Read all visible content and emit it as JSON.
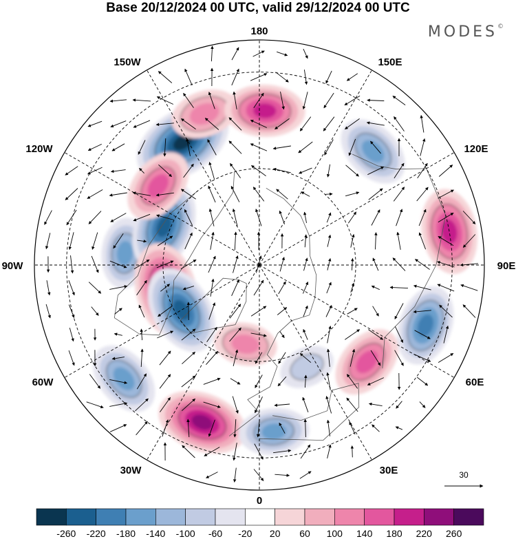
{
  "header": {
    "title": "Base 20/12/2024 00 UTC, valid 29/12/2024 00 UTC",
    "logo_text": "MODES"
  },
  "map": {
    "projection": "north-polar-stereographic",
    "longitude_labels": [
      {
        "key": "0",
        "text": "0"
      },
      {
        "key": "30E",
        "text": "30E"
      },
      {
        "key": "60E",
        "text": "60E"
      },
      {
        "key": "90E",
        "text": "90E"
      },
      {
        "key": "120E",
        "text": "120E"
      },
      {
        "key": "150E",
        "text": "150E"
      },
      {
        "key": "180",
        "text": "180"
      },
      {
        "key": "150W",
        "text": "150W"
      },
      {
        "key": "120W",
        "text": "120W"
      },
      {
        "key": "90W",
        "text": "90W"
      },
      {
        "key": "60W",
        "text": "60W"
      },
      {
        "key": "30W",
        "text": "30W"
      }
    ],
    "anomaly_centers": [
      {
        "lon": -148,
        "lat": 45,
        "sign": "negative",
        "magnitude": 240
      },
      {
        "lon": -95,
        "lat": 48,
        "sign": "negative",
        "magnitude": 120
      },
      {
        "lon": -112,
        "lat": 58,
        "sign": "negative",
        "magnitude": 200
      },
      {
        "lon": -128,
        "lat": 50,
        "sign": "positive",
        "magnitude": 140
      },
      {
        "lon": -160,
        "lat": 40,
        "sign": "positive",
        "magnitude": 110
      },
      {
        "lon": 100,
        "lat": 30,
        "sign": "positive",
        "magnitude": 180
      },
      {
        "lon": 178,
        "lat": 42,
        "sign": "positive",
        "magnitude": 160
      },
      {
        "lon": 135,
        "lat": 40,
        "sign": "negative",
        "magnitude": 140
      },
      {
        "lon": 70,
        "lat": 35,
        "sign": "negative",
        "magnitude": 160
      },
      {
        "lon": 48,
        "lat": 45,
        "sign": "positive",
        "magnitude": 140
      },
      {
        "lon": -20,
        "lat": 38,
        "sign": "positive",
        "magnitude": 200
      },
      {
        "lon": -50,
        "lat": 35,
        "sign": "negative",
        "magnitude": 140
      },
      {
        "lon": 5,
        "lat": 38,
        "sign": "negative",
        "magnitude": 120
      },
      {
        "lon": -75,
        "lat": 60,
        "sign": "positive",
        "magnitude": 220
      },
      {
        "lon": -60,
        "lat": 62,
        "sign": "negative",
        "magnitude": 200
      },
      {
        "lon": -10,
        "lat": 65,
        "sign": "positive",
        "magnitude": 90
      },
      {
        "lon": 25,
        "lat": 55,
        "sign": "negative",
        "magnitude": 60
      }
    ],
    "wind_reference": {
      "value": "30"
    }
  },
  "colorbar": {
    "colors": [
      "#0a3550",
      "#1b5f8f",
      "#3f7fb3",
      "#6b9fcc",
      "#9cb7da",
      "#c1cbe3",
      "#e4e4ef",
      "#ffffff",
      "#f6d5d8",
      "#f1aebd",
      "#ee85ab",
      "#e3579e",
      "#c51f8b",
      "#8f0e7a",
      "#4b0a5c"
    ],
    "labels": [
      "-260",
      "-220",
      "-180",
      "-140",
      "-100",
      "-60",
      "-20",
      "20",
      "60",
      "100",
      "140",
      "180",
      "220",
      "260"
    ]
  }
}
